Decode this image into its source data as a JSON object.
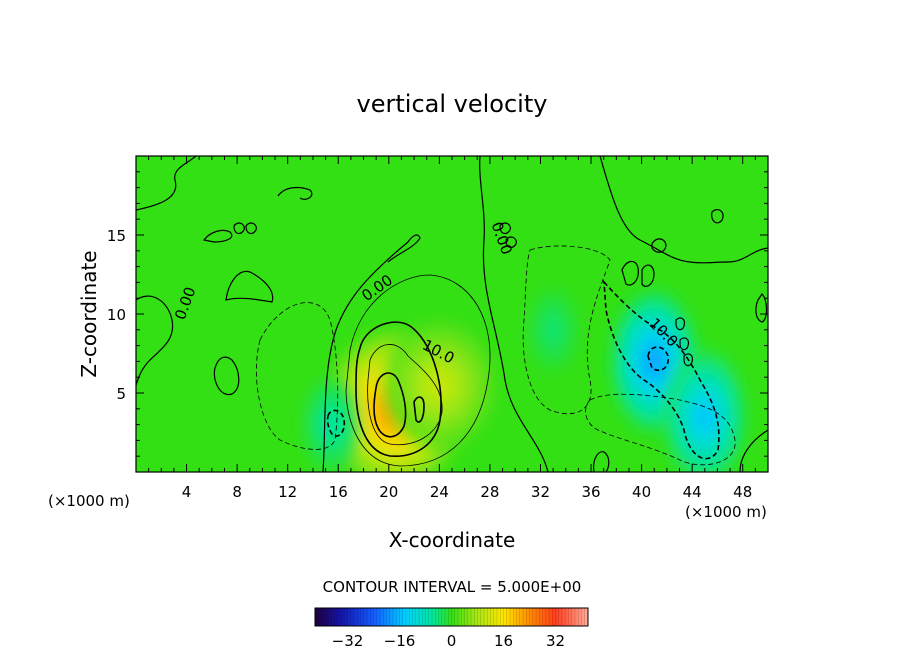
{
  "chart_data": {
    "type": "heatmap",
    "title": "vertical velocity",
    "xlabel": "X-coordinate",
    "ylabel": "Z-coordinate",
    "x_unit_left": "(×1000 m)",
    "x_unit_right": "(×1000 m)",
    "xlim": [
      0,
      50
    ],
    "ylim": [
      0,
      20
    ],
    "xticks": [
      4,
      8,
      12,
      16,
      20,
      24,
      28,
      32,
      36,
      40,
      44,
      48
    ],
    "yticks": [
      5,
      10,
      15
    ],
    "contour_interval_text": "CONTOUR INTERVAL = 5.000E+00",
    "contour_labels": [
      "0.00",
      "0.00",
      "0.00",
      "10.0",
      "10.0"
    ],
    "colorbar": {
      "range": [
        -42,
        42
      ],
      "ticks": [
        -32,
        -16,
        0,
        16,
        32
      ],
      "tick_labels": [
        "−32",
        "−16",
        "0",
        "16",
        "32"
      ]
    },
    "features": [
      {
        "kind": "updraft",
        "x": 20.5,
        "z": 4.0,
        "peak": 30
      },
      {
        "kind": "updraft",
        "x": 24,
        "z": 5.5,
        "peak": 13
      },
      {
        "kind": "downdraft",
        "x": 41,
        "z": 7.0,
        "peak": -22
      },
      {
        "kind": "downdraft",
        "x": 45,
        "z": 3.5,
        "peak": -18
      },
      {
        "kind": "downdraft",
        "x": 15.5,
        "z": 3.0,
        "peak": -8
      },
      {
        "kind": "downdraft",
        "x": 33,
        "z": 9.0,
        "peak": -5
      }
    ],
    "grid": false,
    "legend": "colorbar-bottom"
  }
}
